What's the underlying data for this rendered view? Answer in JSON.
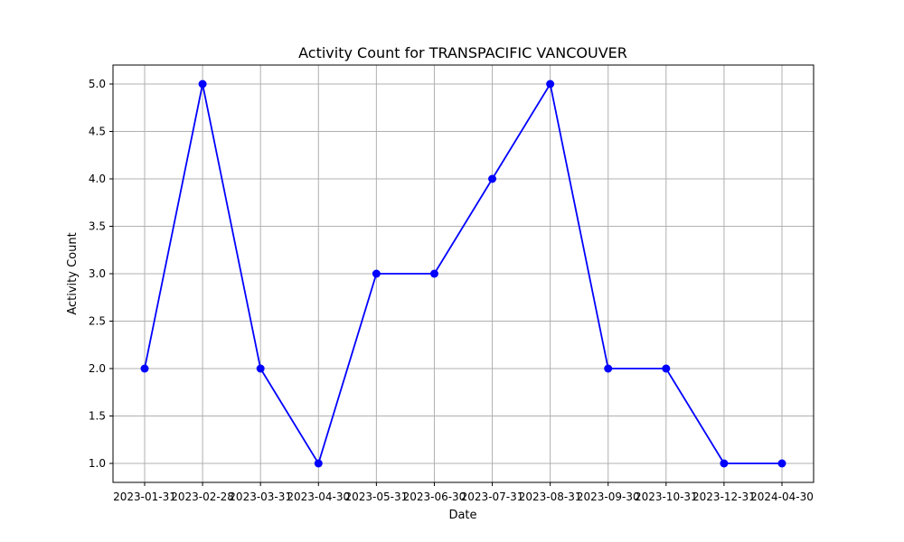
{
  "chart_data": {
    "type": "line",
    "title": "Activity Count for TRANSPACIFIC VANCOUVER",
    "xlabel": "Date",
    "ylabel": "Activity Count",
    "x": [
      "2023-01-31",
      "2023-02-28",
      "2023-03-31",
      "2023-04-30",
      "2023-05-31",
      "2023-06-30",
      "2023-07-31",
      "2023-08-31",
      "2023-09-30",
      "2023-10-31",
      "2023-12-31",
      "2024-04-30"
    ],
    "series": [
      {
        "values": [
          2,
          5,
          2,
          1,
          3,
          3,
          4,
          5,
          2,
          2,
          1,
          1
        ],
        "color": "#0000ff",
        "marker": "circle"
      }
    ],
    "ylim": [
      0.8,
      5.2
    ],
    "yticks": [
      "1.0",
      "1.5",
      "2.0",
      "2.5",
      "3.0",
      "3.5",
      "4.0",
      "4.5",
      "5.0"
    ],
    "grid": true
  }
}
